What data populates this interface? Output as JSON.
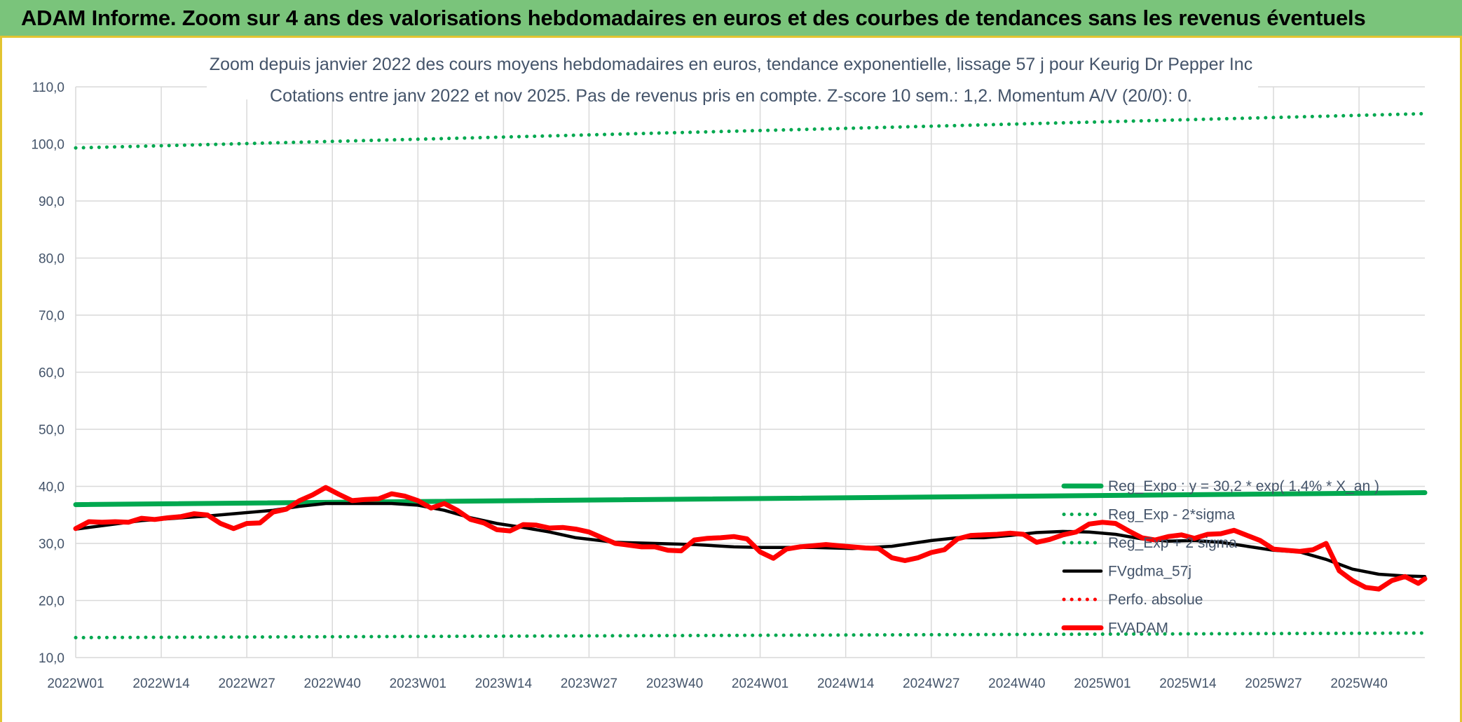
{
  "header": {
    "title": "ADAM Informe. Zoom sur 4 ans des valorisations hebdomadaires en euros et des courbes de tendances sans les revenus éventuels"
  },
  "colors": {
    "header_bg": "#7ac47b",
    "accent_border": "#e2c431",
    "green": "#00a84f",
    "red": "#ff0000",
    "black": "#000000",
    "grid": "#d9d9d9",
    "text": "#44546a"
  },
  "chart_data": {
    "type": "line",
    "title": "Zoom depuis janvier 2022 des cours moyens hebdomadaires en euros, tendance exponentielle, lissage 57 j pour Keurig Dr Pepper Inc",
    "subtitle": "Cotations entre janv 2022 et nov 2025. Pas de revenus pris en compte. Z-score 10 sem.: 1,2. Momentum A/V (20/0): 0.",
    "xlabel": "",
    "ylabel": "",
    "ylim": [
      10,
      110
    ],
    "y_ticks": [
      "10,0",
      "20,0",
      "30,0",
      "40,0",
      "50,0",
      "60,0",
      "70,0",
      "80,0",
      "90,0",
      "100,0",
      "110,0"
    ],
    "x_ticks": [
      "2022W01",
      "2022W14",
      "2022W27",
      "2022W40",
      "2023W01",
      "2023W14",
      "2023W27",
      "2023W40",
      "2024W01",
      "2024W14",
      "2024W27",
      "2024W40",
      "2025W01",
      "2025W14",
      "2025W27",
      "2025W40"
    ],
    "grid": true,
    "legend_position": "right",
    "series": [
      {
        "name": "Reg_Expo : y = 30,2 * exp( 1,4% * X_an )",
        "style": "solid-thick",
        "color": "#00a84f",
        "x": [
          0,
          205
        ],
        "values": [
          36.8,
          38.9
        ]
      },
      {
        "name": "Reg_Exp - 2*sigma",
        "style": "dotted",
        "color": "#00a84f",
        "x": [
          0,
          205
        ],
        "values": [
          13.5,
          14.3
        ]
      },
      {
        "name": "Reg_Exp + 2 sigma",
        "style": "dotted",
        "color": "#00a84f",
        "x": [
          0,
          205
        ],
        "values": [
          99.3,
          105.3
        ]
      },
      {
        "name": "FVgdma_57j",
        "style": "solid",
        "color": "#000000",
        "x": [
          0,
          10,
          20,
          30,
          34,
          38,
          40,
          44,
          48,
          52,
          56,
          60,
          64,
          68,
          72,
          76,
          82,
          88,
          94,
          100,
          104,
          108,
          112,
          118,
          124,
          130,
          134,
          138,
          142,
          146,
          150,
          154,
          158,
          162,
          166,
          170,
          174,
          178,
          182,
          186,
          190,
          194,
          198,
          202,
          205
        ],
        "values": [
          32.5,
          34.0,
          34.8,
          35.8,
          36.5,
          37.0,
          37.0,
          37.0,
          37.0,
          36.7,
          35.8,
          34.5,
          33.5,
          32.8,
          32.0,
          31.0,
          30.2,
          30.0,
          29.8,
          29.4,
          29.3,
          29.3,
          29.3,
          29.1,
          29.5,
          30.5,
          31.0,
          31.0,
          31.4,
          31.9,
          32.1,
          32.0,
          31.6,
          30.8,
          30.4,
          30.5,
          30.2,
          29.5,
          28.8,
          28.5,
          27.2,
          25.5,
          24.6,
          24.3,
          24.2
        ]
      },
      {
        "name": "Perfo. absolue",
        "style": "dotted",
        "color": "#ff0000",
        "x": [],
        "values": []
      },
      {
        "name": "FVADAM",
        "style": "solid-thick",
        "color": "#ff0000",
        "x": [
          0,
          2,
          4,
          6,
          8,
          10,
          12,
          14,
          16,
          18,
          20,
          22,
          24,
          26,
          28,
          30,
          32,
          34,
          36,
          38,
          40,
          42,
          44,
          46,
          48,
          50,
          52,
          54,
          56,
          58,
          60,
          62,
          64,
          66,
          68,
          70,
          72,
          74,
          76,
          78,
          80,
          82,
          84,
          86,
          88,
          90,
          92,
          94,
          96,
          98,
          100,
          102,
          104,
          106,
          108,
          110,
          112,
          114,
          116,
          118,
          120,
          122,
          124,
          126,
          128,
          130,
          132,
          134,
          136,
          138,
          140,
          142,
          144,
          146,
          148,
          150,
          152,
          154,
          156,
          158,
          160,
          162,
          164,
          166,
          168,
          170,
          172,
          174,
          176,
          178,
          180,
          182,
          184,
          186,
          188,
          190,
          192,
          194,
          196,
          198,
          200,
          202,
          204,
          205
        ],
        "values": [
          32.6,
          33.8,
          33.7,
          33.8,
          33.7,
          34.4,
          34.2,
          34.5,
          34.7,
          35.2,
          35.0,
          33.5,
          32.6,
          33.5,
          33.6,
          35.5,
          36.0,
          37.5,
          38.5,
          39.8,
          38.6,
          37.5,
          37.7,
          37.8,
          38.7,
          38.3,
          37.5,
          36.2,
          37.0,
          35.8,
          34.2,
          33.6,
          32.4,
          32.2,
          33.3,
          33.2,
          32.7,
          32.8,
          32.5,
          32.0,
          31.0,
          30.0,
          29.7,
          29.4,
          29.4,
          28.8,
          28.7,
          30.6,
          30.9,
          31.0,
          31.2,
          30.8,
          28.5,
          27.4,
          29.0,
          29.4,
          29.6,
          29.8,
          29.6,
          29.4,
          29.2,
          29.1,
          27.5,
          27.0,
          27.5,
          28.4,
          28.9,
          30.8,
          31.4,
          31.5,
          31.6,
          31.8,
          31.6,
          30.2,
          30.7,
          31.5,
          32.0,
          33.4,
          33.7,
          33.5,
          32.2,
          31.0,
          30.6,
          31.2,
          31.5,
          30.9,
          31.6,
          31.7,
          32.3,
          31.4,
          30.5,
          29.0,
          28.8,
          28.6,
          28.9,
          30.0,
          25.2,
          23.5,
          22.3,
          22.0,
          23.5,
          24.2,
          23.0,
          23.8
        ]
      }
    ]
  }
}
